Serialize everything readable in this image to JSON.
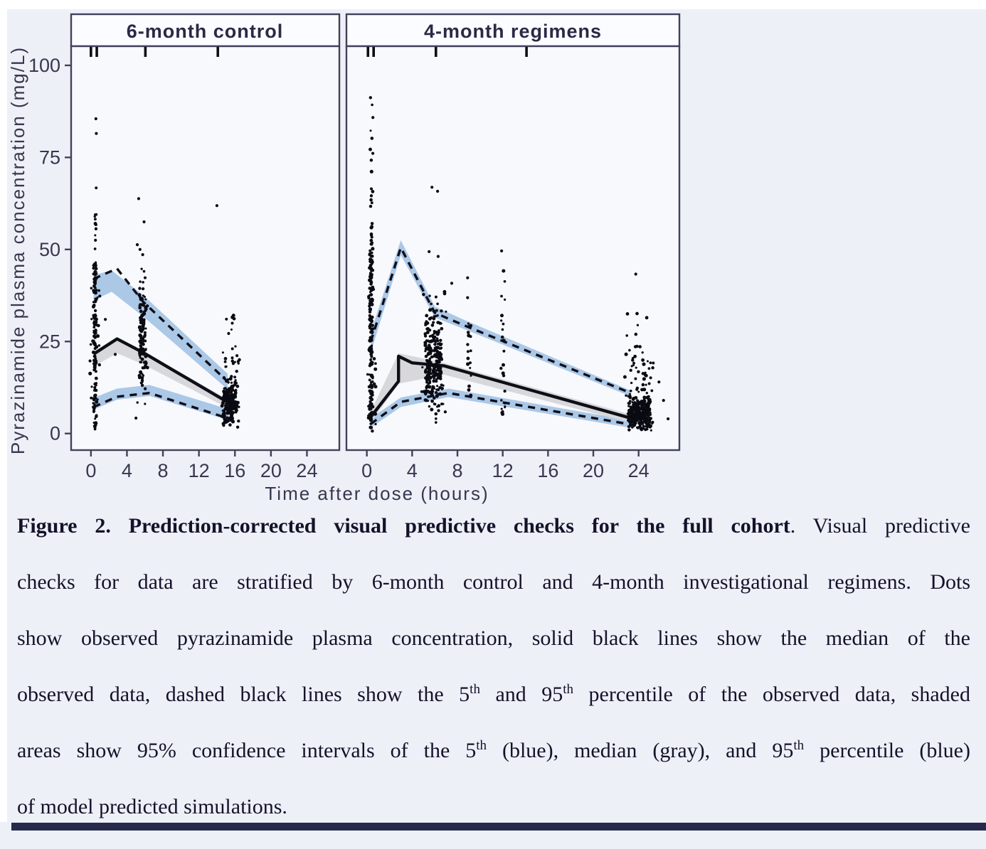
{
  "page": {
    "background": "#edf0f7",
    "top_strip_color": "#ffffff",
    "left_strip_color": "#ffffff",
    "bottom_bar_color": "#262a4c"
  },
  "chart_data": {
    "type": "scatter",
    "title": "",
    "xlabel": "Time after dose (hours)",
    "ylabel": "Pyrazinamide plasma concentration (mg/L)",
    "x_ticks": [
      0,
      4,
      8,
      12,
      16,
      20,
      24
    ],
    "y_ticks": [
      0,
      25,
      50,
      75,
      100
    ],
    "ylim": [
      -4.5,
      105.2
    ],
    "grid": false,
    "legend_position": "none",
    "legend_note": "dots = observed concentrations; solid black line = observed median; dashed black lines = observed 5th and 95th percentiles; blue shaded areas = 95% CI of simulated 5th and 95th percentiles; gray shaded area = 95% CI of simulated median",
    "colors": {
      "band_blue": "#a7c5e6",
      "band_gray": "#d6d6da",
      "line_black": "#0e0e18",
      "dot_black": "#0a0a12",
      "axis": "#43405c",
      "text": "#39364f",
      "panel_bg": "#f8f9fd",
      "header_bg": "#fbfcff"
    },
    "panels": [
      {
        "title": "6-month control",
        "xlim": [
          -2.2,
          27.6
        ],
        "top_ticks": [
          0.0,
          0.65,
          6.05,
          14.1
        ],
        "bands": {
          "p95": {
            "color_key": "band_blue",
            "upper": [
              [
                0.3,
                43
              ],
              [
                2.3,
                44.3
              ],
              [
                5.8,
                37.6
              ],
              [
                15.2,
                16.2
              ]
            ],
            "lower": [
              [
                0.3,
                36.2
              ],
              [
                2.3,
                38.5
              ],
              [
                5.8,
                31.8
              ],
              [
                15.2,
                12
              ]
            ]
          },
          "p50": {
            "color_key": "band_gray",
            "upper": [
              [
                0.3,
                22.3
              ],
              [
                2.9,
                25.5
              ],
              [
                5.8,
                22.3
              ],
              [
                15.3,
                9.2
              ]
            ],
            "lower": [
              [
                0.3,
                18.2
              ],
              [
                2.9,
                21.8
              ],
              [
                5.8,
                18.8
              ],
              [
                15.3,
                6.8
              ]
            ]
          },
          "p5": {
            "color_key": "band_blue",
            "upper": [
              [
                0.3,
                9.7
              ],
              [
                2.9,
                12.2
              ],
              [
                6.5,
                13.2
              ],
              [
                15.3,
                6.6
              ]
            ],
            "lower": [
              [
                0.3,
                6.5
              ],
              [
                2.9,
                9.2
              ],
              [
                6.5,
                10.2
              ],
              [
                15.3,
                3.6
              ]
            ]
          }
        },
        "lines": {
          "median_solid": [
            [
              0.3,
              21.6
            ],
            [
              2.9,
              25.7
            ],
            [
              5.8,
              22.0
            ],
            [
              15.4,
              8.2
            ]
          ],
          "p95_dashed": [
            [
              0.3,
              42
            ],
            [
              2.9,
              44.8
            ],
            [
              5.8,
              35.8
            ],
            [
              15.4,
              13.6
            ]
          ],
          "p5_dashed": [
            [
              0.3,
              7.2
            ],
            [
              2.9,
              10.0
            ],
            [
              6.5,
              11.0
            ],
            [
              15.4,
              4.0
            ]
          ]
        },
        "clusters": [
          {
            "x": 0.45,
            "xs": 0.17,
            "y0": 1,
            "y1": 48,
            "n": 120,
            "mode": "uniform"
          },
          {
            "x": 0.45,
            "xs": 0.55,
            "y0": 4,
            "y1": 44,
            "n": 26,
            "mode": "uniform"
          },
          {
            "x": 0.5,
            "xs": 0.12,
            "y0": 50,
            "y1": 69,
            "n": 10,
            "mode": "uniform"
          },
          {
            "x": 5.75,
            "xs": 0.38,
            "y0": 11,
            "y1": 41,
            "n": 110,
            "mode": "mid"
          },
          {
            "x": 5.75,
            "xs": 0.65,
            "y0": 8,
            "y1": 45,
            "n": 22,
            "mode": "uniform"
          },
          {
            "x": 15.4,
            "xs": 0.75,
            "y0": 1.5,
            "y1": 16,
            "n": 175,
            "mode": "mid"
          },
          {
            "x": 15.5,
            "xs": 0.95,
            "y0": 1,
            "y1": 22,
            "n": 40,
            "mode": "uniform"
          },
          {
            "x": 15.7,
            "xs": 0.8,
            "y0": 18,
            "y1": 33,
            "n": 14,
            "mode": "uniform"
          }
        ],
        "points": [
          [
            0.55,
            85.5
          ],
          [
            0.6,
            81.5
          ],
          [
            5.3,
            63.8
          ],
          [
            14.0,
            61.9
          ],
          [
            5.9,
            57.5
          ],
          [
            5.15,
            51.3
          ],
          [
            5.45,
            50.0
          ],
          [
            5.75,
            48.6
          ],
          [
            5.0,
            4.2
          ],
          [
            1.6,
            31.0
          ],
          [
            2.7,
            21.5
          ],
          [
            0.5,
            52.5
          ]
        ]
      },
      {
        "title": "4-month regimens",
        "xlim": [
          -1.8,
          27.6
        ],
        "top_ticks": [
          0.1,
          0.6,
          6.1,
          14.1
        ],
        "bands": {
          "p95": {
            "color_key": "band_blue",
            "upper": [
              [
                0.35,
                27.5
              ],
              [
                3.0,
                52.5
              ],
              [
                6.0,
                34.5
              ],
              [
                8.5,
                31
              ],
              [
                23.2,
                11.8
              ]
            ],
            "lower": [
              [
                0.35,
                22
              ],
              [
                3.0,
                48.5
              ],
              [
                6.0,
                31.5
              ],
              [
                8.5,
                28.5
              ],
              [
                23.2,
                10.2
              ]
            ]
          },
          "p50": {
            "color_key": "band_gray",
            "upper": [
              [
                0.35,
                6
              ],
              [
                2.8,
                21.8
              ],
              [
                6.8,
                19.2
              ],
              [
                24,
                4.6
              ]
            ],
            "lower": [
              [
                0.35,
                3
              ],
              [
                2.8,
                13.5
              ],
              [
                6.8,
                16.0
              ],
              [
                24,
                2.4
              ]
            ]
          },
          "p5": {
            "color_key": "band_blue",
            "upper": [
              [
                0.35,
                4.2
              ],
              [
                3.0,
                9.8
              ],
              [
                7.2,
                12.2
              ],
              [
                23.6,
                3.4
              ]
            ],
            "lower": [
              [
                0.35,
                1.6
              ],
              [
                3.0,
                7.2
              ],
              [
                7.2,
                9.9
              ],
              [
                23.6,
                1.4
              ]
            ]
          }
        },
        "lines": {
          "median_solid": [
            [
              0.35,
              4.5
            ],
            [
              2.8,
              14.2
            ],
            [
              2.8,
              21.0
            ],
            [
              4.0,
              19.2
            ],
            [
              6.8,
              18.4
            ],
            [
              24.0,
              3.6
            ]
          ],
          "p95_dashed": [
            [
              0.35,
              25
            ],
            [
              3.0,
              50.5
            ],
            [
              6.0,
              32.8
            ],
            [
              8.5,
              29.5
            ],
            [
              23.3,
              11.0
            ]
          ],
          "p5_dashed": [
            [
              0.35,
              2.6
            ],
            [
              3.0,
              8.6
            ],
            [
              7.2,
              11.0
            ],
            [
              23.8,
              2.2
            ]
          ]
        },
        "clusters": [
          {
            "x": 0.38,
            "xs": 0.14,
            "y0": 0.5,
            "y1": 52,
            "n": 150,
            "mode": "uniform"
          },
          {
            "x": 0.5,
            "xs": 0.45,
            "y0": 2,
            "y1": 40,
            "n": 24,
            "mode": "low"
          },
          {
            "x": 0.42,
            "xs": 0.12,
            "y0": 52,
            "y1": 100,
            "n": 26,
            "mode": "low"
          },
          {
            "x": 5.9,
            "xs": 0.75,
            "y0": 4.5,
            "y1": 36,
            "n": 230,
            "mode": "mid"
          },
          {
            "x": 5.9,
            "xs": 1.1,
            "y0": 3,
            "y1": 40,
            "n": 40,
            "mode": "uniform"
          },
          {
            "x": 9.05,
            "xs": 0.16,
            "y0": 10,
            "y1": 30,
            "n": 17,
            "mode": "uniform"
          },
          {
            "x": 12.0,
            "xs": 0.2,
            "y0": 5,
            "y1": 46,
            "n": 26,
            "mode": "uniform"
          },
          {
            "x": 24.1,
            "xs": 1.0,
            "y0": 0.5,
            "y1": 10.5,
            "n": 260,
            "mode": "mid"
          },
          {
            "x": 24.0,
            "xs": 1.3,
            "y0": 0.5,
            "y1": 20,
            "n": 60,
            "mode": "uniform"
          },
          {
            "x": 23.8,
            "xs": 1.0,
            "y0": 20,
            "y1": 34,
            "n": 14,
            "mode": "uniform"
          }
        ],
        "points": [
          [
            5.75,
            66.9
          ],
          [
            6.25,
            65.8
          ],
          [
            5.5,
            49.4
          ],
          [
            6.3,
            48.1
          ],
          [
            7.5,
            40.8
          ],
          [
            8.9,
            42.3
          ],
          [
            8.9,
            36.9
          ],
          [
            11.9,
            49.6
          ],
          [
            23.75,
            43.3
          ],
          [
            25.8,
            14.0
          ],
          [
            26.2,
            9.0
          ],
          [
            26.6,
            4.0
          ]
        ]
      }
    ]
  },
  "caption": {
    "lines": [
      [
        {
          "t": "Figure 2. Prediction-corrected visual predictive checks for the full cohort",
          "b": true
        },
        {
          "t": ". Visual predictive"
        }
      ],
      [
        {
          "t": "checks for data are stratified by 6-month control and 4-month investigational regimens. Dots"
        }
      ],
      [
        {
          "t": "show observed pyrazinamide plasma concentration, solid black lines show the median of the"
        }
      ],
      [
        {
          "t": "observed data, dashed black lines show the 5"
        },
        {
          "t": "th",
          "sup": true
        },
        {
          "t": " and 95"
        },
        {
          "t": "th",
          "sup": true
        },
        {
          "t": " percentile of the observed data, shaded"
        }
      ],
      [
        {
          "t": "areas show 95% confidence intervals of the 5"
        },
        {
          "t": "th",
          "sup": true
        },
        {
          "t": " (blue), median (gray), and 95"
        },
        {
          "t": "th",
          "sup": true
        },
        {
          "t": " percentile (blue)"
        }
      ],
      [
        {
          "t": "of model predicted simulations."
        }
      ]
    ]
  }
}
